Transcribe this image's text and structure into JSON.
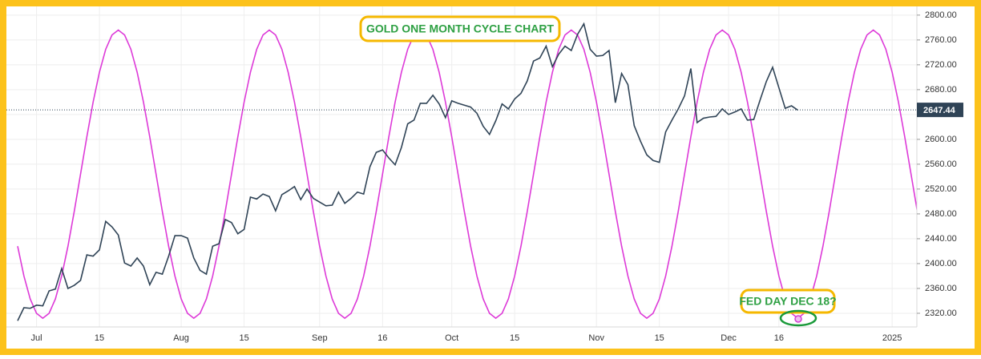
{
  "chart_data": {
    "type": "line",
    "title": "GOLD ONE MONTH CYCLE CHART",
    "annotations": [
      "FED DAY DEC 18?"
    ],
    "categories": [
      null,
      null,
      null,
      "Jul",
      null,
      null,
      null,
      null,
      null,
      null,
      null,
      null,
      null,
      "15",
      null,
      null,
      null,
      null,
      null,
      null,
      null,
      null,
      null,
      null,
      null,
      null,
      "Aug",
      null,
      null,
      null,
      null,
      null,
      null,
      null,
      null,
      null,
      "15",
      null,
      null,
      null,
      null,
      null,
      null,
      null,
      null,
      null,
      null,
      null,
      "Sep",
      null,
      null,
      null,
      null,
      null,
      null,
      null,
      null,
      null,
      "16",
      null,
      null,
      null,
      null,
      null,
      null,
      null,
      null,
      null,
      null,
      "Oct",
      null,
      null,
      null,
      null,
      null,
      null,
      null,
      null,
      null,
      "15",
      null,
      null,
      null,
      null,
      null,
      null,
      null,
      null,
      null,
      null,
      null,
      null,
      "Nov",
      null,
      null,
      null,
      null,
      null,
      null,
      null,
      null,
      null,
      "15",
      null,
      null,
      null,
      null,
      null,
      null,
      null,
      null,
      null,
      null,
      "Dec",
      null,
      null,
      null,
      null,
      null,
      null,
      null,
      "16",
      null,
      null,
      null,
      null,
      null,
      null,
      null,
      null,
      null,
      null,
      null,
      null,
      null,
      null,
      null,
      null,
      null,
      "2025",
      null,
      null,
      null,
      null
    ],
    "series": [
      {
        "color": "#2f4356",
        "values": [
          2308,
          2329,
          2328,
          2333,
          2332,
          2356,
          2359,
          2392,
          2360,
          2365,
          2373,
          2414,
          2412,
          2422,
          2468,
          2459,
          2446,
          2401,
          2396,
          2409,
          2396,
          2366,
          2386,
          2383,
          2412,
          2445,
          2445,
          2441,
          2409,
          2389,
          2383,
          2428,
          2432,
          2471,
          2466,
          2448,
          2455,
          2507,
          2504,
          2512,
          2508,
          2485,
          2511,
          2517,
          2524,
          2503,
          2520,
          2505,
          2499,
          2493,
          2494,
          2515,
          2497,
          2505,
          2515,
          2512,
          2556,
          2579,
          2583,
          2570,
          2559,
          2587,
          2625,
          2631,
          2658,
          2658,
          2671,
          2657,
          2635,
          2662,
          2658,
          2655,
          2652,
          2642,
          2621,
          2608,
          2630,
          2657,
          2649,
          2665,
          2674,
          2694,
          2726,
          2731,
          2750,
          2717,
          2737,
          2750,
          2743,
          2769,
          2786,
          2745,
          2734,
          2735,
          2743,
          2659,
          2706,
          2688,
          2622,
          2597,
          2575,
          2566,
          2563,
          2612,
          2631,
          2649,
          2670,
          2714,
          2627,
          2634,
          2636,
          2637,
          2649,
          2640,
          2644,
          2649,
          2631,
          2632,
          2663,
          2693,
          2716,
          2683,
          2650,
          2654,
          2647,
          null,
          null,
          null,
          null,
          null,
          null,
          null,
          null,
          null,
          null,
          null,
          null,
          null,
          null,
          null,
          null,
          null,
          null,
          null
        ]
      },
      {
        "color": "#dd3ad8",
        "values": [
          2428,
          2380,
          2343,
          2320,
          2312,
          2320,
          2343,
          2380,
          2428,
          2484,
          2544,
          2604,
          2660,
          2708,
          2745,
          2768,
          2776,
          2768,
          2745,
          2708,
          2660,
          2604,
          2544,
          2484,
          2428,
          2380,
          2343,
          2320,
          2312,
          2320,
          2343,
          2380,
          2428,
          2484,
          2544,
          2604,
          2660,
          2708,
          2745,
          2768,
          2776,
          2768,
          2745,
          2708,
          2660,
          2604,
          2544,
          2484,
          2428,
          2380,
          2343,
          2320,
          2312,
          2320,
          2343,
          2380,
          2428,
          2484,
          2544,
          2604,
          2660,
          2708,
          2745,
          2768,
          2776,
          2768,
          2745,
          2708,
          2660,
          2604,
          2544,
          2484,
          2428,
          2380,
          2343,
          2320,
          2312,
          2320,
          2343,
          2380,
          2428,
          2484,
          2544,
          2604,
          2660,
          2708,
          2745,
          2768,
          2776,
          2768,
          2745,
          2708,
          2660,
          2604,
          2544,
          2484,
          2428,
          2380,
          2343,
          2320,
          2312,
          2320,
          2343,
          2380,
          2428,
          2484,
          2544,
          2604,
          2660,
          2708,
          2745,
          2768,
          2776,
          2768,
          2745,
          2708,
          2660,
          2604,
          2544,
          2484,
          2428,
          2380,
          2343,
          2320,
          2312,
          2320,
          2343,
          2380,
          2428,
          2484,
          2544,
          2604,
          2660,
          2708,
          2745,
          2768,
          2776,
          2768,
          2745,
          2708,
          2660,
          2604,
          2544,
          2484
        ]
      }
    ],
    "last_value": 2647.44,
    "ylim": [
      2298,
      2814
    ],
    "yticks": [
      {
        "value": 2320,
        "label": "2320.00"
      },
      {
        "value": 2360,
        "label": "2360.00"
      },
      {
        "value": 2400,
        "label": "2400.00"
      },
      {
        "value": 2440,
        "label": "2440.00"
      },
      {
        "value": 2480,
        "label": "2480.00"
      },
      {
        "value": 2520,
        "label": "2520.00"
      },
      {
        "value": 2560,
        "label": "2560.00"
      },
      {
        "value": 2600,
        "label": "2600.00"
      },
      {
        "value": 2640,
        "label": "2640.00"
      },
      {
        "value": 2680,
        "label": "2680.00"
      },
      {
        "value": 2720,
        "label": "2720.00"
      },
      {
        "value": 2760,
        "label": "2760.00"
      },
      {
        "value": 2800,
        "label": "2800.00"
      }
    ],
    "grid": true
  }
}
